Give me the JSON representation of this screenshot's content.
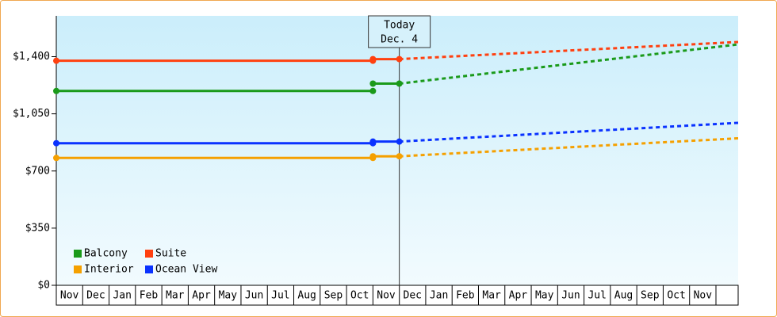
{
  "chart_data": {
    "type": "price-forecast",
    "annotation": {
      "title": "Today",
      "date": "Dec. 4"
    },
    "categories": [
      "Nov",
      "Dec",
      "Jan",
      "Feb",
      "Mar",
      "Apr",
      "May",
      "Jun",
      "Jul",
      "Aug",
      "Sep",
      "Oct",
      "Nov",
      "Dec",
      "Jan",
      "Feb",
      "Mar",
      "Apr",
      "May",
      "Jun",
      "Jul",
      "Aug",
      "Sep",
      "Oct",
      "Nov"
    ],
    "ylim": [
      0,
      1650
    ],
    "yticks": [
      {
        "value": 0,
        "label": "$0"
      },
      {
        "value": 350,
        "label": "$350"
      },
      {
        "value": 700,
        "label": "$700"
      },
      {
        "value": 1050,
        "label": "$1,050"
      },
      {
        "value": 1400,
        "label": "$1,400"
      }
    ],
    "series": [
      {
        "name": "Balcony",
        "color": "#1a9a1a",
        "past": 1190,
        "today": 1235,
        "forecast_end": 1475
      },
      {
        "name": "Suite",
        "color": "#ff4010",
        "past": 1375,
        "today": 1385,
        "forecast_end": 1490
      },
      {
        "name": "Interior",
        "color": "#f5a000",
        "past": 780,
        "today": 790,
        "forecast_end": 900
      },
      {
        "name": "Ocean View",
        "color": "#0a32ff",
        "past": 870,
        "today": 880,
        "forecast_end": 995
      }
    ]
  }
}
